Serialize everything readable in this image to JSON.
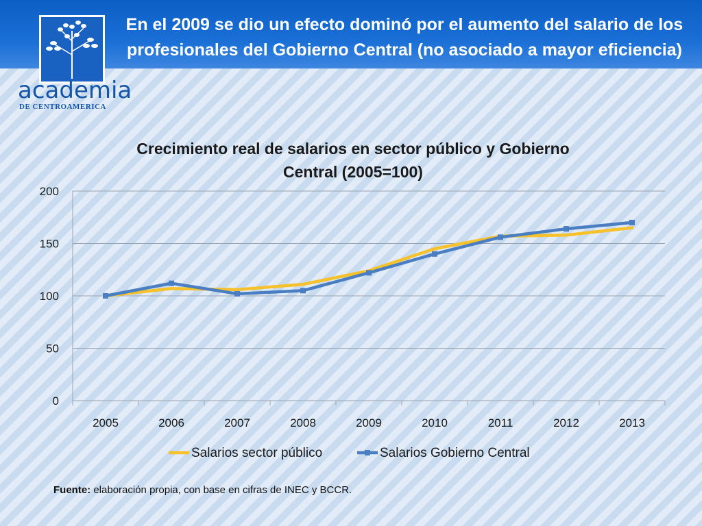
{
  "slide": {
    "title": "En el 2009 se dio un efecto dominó por el aumento del salario de los profesionales del Gobierno Central (no asociado a mayor eficiencia)",
    "logo_word": "academia",
    "logo_sub": "DE CENTROAMERICA",
    "source_label": "Fuente:",
    "source_text": " elaboración propia, con base en cifras de INEC y BCCR."
  },
  "colors": {
    "publico": "#f6c12a",
    "gobierno": "#4a7ec2",
    "grid": "#9aa5b1"
  },
  "chart_data": {
    "type": "line",
    "title": "Crecimiento real de salarios en sector público y Gobierno Central (2005=100)",
    "categories": [
      "2005",
      "2006",
      "2007",
      "2008",
      "2009",
      "2010",
      "2011",
      "2012",
      "2013"
    ],
    "series": [
      {
        "name": "Salarios sector público",
        "values": [
          100,
          107,
          106,
          111,
          124,
          145,
          157,
          158,
          165
        ]
      },
      {
        "name": "Salarios Gobierno Central",
        "values": [
          100,
          112,
          102,
          105,
          122,
          140,
          156,
          164,
          170
        ]
      }
    ],
    "ylim": [
      0,
      200
    ],
    "yticks": [
      0,
      50,
      100,
      150,
      200
    ],
    "grid": true,
    "legend": "bottom"
  }
}
